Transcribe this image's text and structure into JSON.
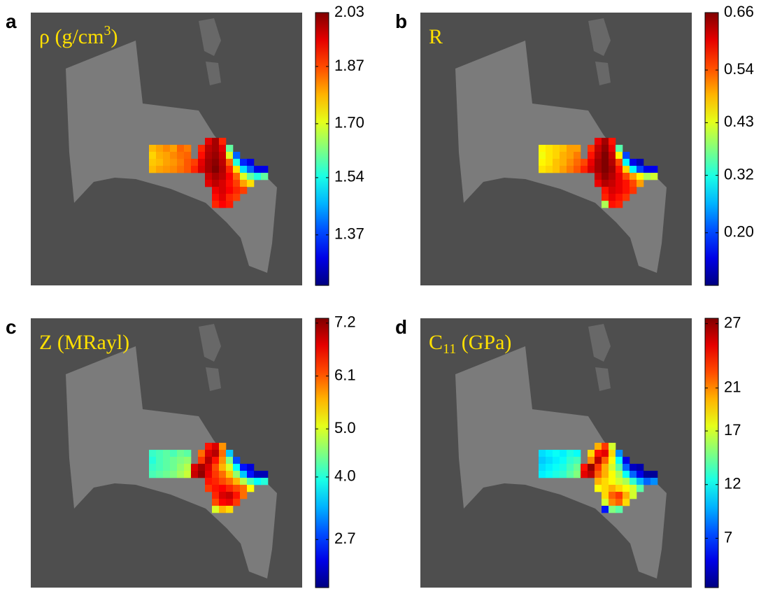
{
  "chart_data": [
    {
      "type": "heatmap",
      "label": "a",
      "title": {
        "text": "ρ (g/cm",
        "sup": "3",
        "after": ")"
      },
      "clim": [
        1.22,
        2.03
      ],
      "cticks": [
        2.03,
        1.87,
        {
          "value": 1.7,
          "label": "1.70"
        },
        1.54,
        1.37
      ],
      "cells": [
        [
          null,
          null,
          null,
          null,
          null,
          null,
          null,
          null,
          1.95,
          2.0,
          1.9,
          null,
          null,
          null,
          null,
          null,
          null
        ],
        [
          1.78,
          1.8,
          1.82,
          1.8,
          1.85,
          1.83,
          null,
          1.9,
          1.98,
          2.0,
          1.95,
          1.6,
          null,
          null,
          null,
          null,
          null
        ],
        [
          1.76,
          1.79,
          1.8,
          1.82,
          1.84,
          1.85,
          null,
          1.92,
          1.99,
          2.01,
          1.97,
          1.7,
          1.4,
          null,
          null,
          null,
          null
        ],
        [
          1.77,
          1.78,
          1.8,
          1.81,
          1.83,
          1.86,
          1.88,
          1.95,
          2.0,
          2.02,
          1.98,
          1.85,
          1.55,
          1.35,
          1.3,
          null,
          null
        ],
        [
          1.78,
          1.8,
          1.81,
          1.82,
          1.84,
          1.86,
          1.9,
          1.96,
          2.0,
          2.03,
          1.99,
          1.9,
          1.75,
          1.5,
          1.4,
          1.3,
          1.3
        ],
        [
          null,
          null,
          null,
          null,
          null,
          null,
          null,
          null,
          1.97,
          2.0,
          1.98,
          1.93,
          1.85,
          1.7,
          1.6,
          1.55,
          1.6
        ],
        [
          null,
          null,
          null,
          null,
          null,
          null,
          null,
          null,
          1.95,
          1.98,
          1.96,
          1.92,
          1.88,
          1.8,
          1.75,
          null,
          null
        ],
        [
          null,
          null,
          null,
          null,
          null,
          null,
          null,
          null,
          null,
          1.94,
          1.96,
          1.93,
          1.9,
          1.88,
          null,
          null,
          null
        ],
        [
          null,
          null,
          null,
          null,
          null,
          null,
          null,
          null,
          null,
          1.92,
          1.95,
          1.9,
          1.88,
          null,
          null,
          null,
          null
        ],
        [
          null,
          null,
          null,
          null,
          null,
          null,
          null,
          null,
          null,
          1.9,
          1.93,
          1.91,
          null,
          null,
          null,
          null,
          null
        ]
      ]
    },
    {
      "type": "heatmap",
      "label": "b",
      "title": {
        "text": "R"
      },
      "clim": [
        0.09,
        0.66
      ],
      "cticks": [
        0.66,
        0.54,
        0.43,
        0.32,
        {
          "value": 0.2,
          "label": "0.20"
        }
      ],
      "cells": [
        [
          null,
          null,
          null,
          null,
          null,
          null,
          null,
          null,
          0.6,
          0.64,
          0.58,
          null,
          null,
          null,
          null,
          null,
          null
        ],
        [
          0.45,
          0.46,
          0.47,
          0.48,
          0.5,
          0.5,
          null,
          0.56,
          0.62,
          0.65,
          0.6,
          0.35,
          null,
          null,
          null,
          null,
          null
        ],
        [
          0.44,
          0.46,
          0.47,
          0.49,
          0.5,
          0.52,
          null,
          0.58,
          0.63,
          0.66,
          0.62,
          0.45,
          0.2,
          null,
          null,
          null,
          null
        ],
        [
          0.45,
          0.46,
          0.48,
          0.49,
          0.51,
          0.53,
          0.55,
          0.6,
          0.64,
          0.66,
          0.63,
          0.55,
          0.3,
          0.15,
          0.12,
          null,
          null
        ],
        [
          0.46,
          0.47,
          0.48,
          0.5,
          0.52,
          0.54,
          0.57,
          0.61,
          0.64,
          0.66,
          0.64,
          0.58,
          0.47,
          0.3,
          0.2,
          0.15,
          0.15
        ],
        [
          null,
          null,
          null,
          null,
          null,
          null,
          null,
          null,
          0.62,
          0.65,
          0.63,
          0.6,
          0.55,
          0.5,
          0.45,
          0.4,
          0.42
        ],
        [
          null,
          null,
          null,
          null,
          null,
          null,
          null,
          null,
          0.6,
          0.63,
          0.62,
          0.6,
          0.58,
          0.55,
          0.5,
          null,
          null
        ],
        [
          null,
          null,
          null,
          null,
          null,
          null,
          null,
          null,
          null,
          0.58,
          0.61,
          0.6,
          0.58,
          0.56,
          null,
          null,
          null
        ],
        [
          null,
          null,
          null,
          null,
          null,
          null,
          null,
          null,
          null,
          0.57,
          0.6,
          0.58,
          0.56,
          null,
          null,
          null,
          null
        ],
        [
          null,
          null,
          null,
          null,
          null,
          null,
          null,
          null,
          null,
          0.4,
          0.58,
          0.57,
          null,
          null,
          null,
          null,
          null
        ]
      ]
    },
    {
      "type": "heatmap",
      "label": "c",
      "title": {
        "text": "Z (MRayl)"
      },
      "clim": [
        1.7,
        7.3
      ],
      "cticks": [
        7.2,
        6.1,
        {
          "value": 5,
          "label": "5.0"
        },
        {
          "value": 4,
          "label": "4.0"
        },
        2.7
      ],
      "cells": [
        [
          null,
          null,
          null,
          null,
          null,
          null,
          null,
          null,
          6.5,
          6.8,
          5.8,
          null,
          null,
          null,
          null,
          null,
          null
        ],
        [
          4.1,
          4.2,
          4.3,
          4.2,
          4.4,
          4.3,
          null,
          6.0,
          6.8,
          7.0,
          6.0,
          3.5,
          null,
          null,
          null,
          null,
          null
        ],
        [
          4.0,
          4.2,
          4.3,
          4.4,
          4.5,
          4.6,
          null,
          6.3,
          7.0,
          6.5,
          5.8,
          4.5,
          2.8,
          null,
          null,
          null,
          null
        ],
        [
          4.1,
          4.2,
          4.3,
          4.4,
          4.6,
          4.8,
          6.8,
          7.1,
          6.8,
          6.2,
          5.6,
          5.0,
          3.8,
          2.5,
          2.2,
          null,
          null
        ],
        [
          4.2,
          4.3,
          4.4,
          4.5,
          4.7,
          4.9,
          6.9,
          7.2,
          6.7,
          6.3,
          6.0,
          5.5,
          4.6,
          3.5,
          2.5,
          2.0,
          2.0
        ],
        [
          null,
          null,
          null,
          null,
          null,
          null,
          null,
          null,
          6.5,
          6.4,
          6.2,
          6.0,
          5.6,
          4.8,
          4.2,
          3.8,
          4.0
        ],
        [
          null,
          null,
          null,
          null,
          null,
          null,
          null,
          null,
          6.3,
          6.5,
          6.6,
          6.4,
          6.2,
          6.0,
          5.2,
          null,
          null
        ],
        [
          null,
          null,
          null,
          null,
          null,
          null,
          null,
          null,
          null,
          6.4,
          6.8,
          6.9,
          6.5,
          6.0,
          null,
          null,
          null
        ],
        [
          null,
          null,
          null,
          null,
          null,
          null,
          null,
          null,
          null,
          6.2,
          6.6,
          6.7,
          6.3,
          null,
          null,
          null,
          null
        ],
        [
          null,
          null,
          null,
          null,
          null,
          null,
          null,
          null,
          null,
          5.0,
          5.6,
          5.4,
          null,
          null,
          null,
          null,
          null
        ]
      ]
    },
    {
      "type": "heatmap",
      "label": "d",
      "title": {
        "text": "C",
        "sub": "11",
        "after": " (GPa)"
      },
      "clim": [
        2.4,
        27.5
      ],
      "cticks": [
        27,
        21,
        17,
        12,
        7
      ],
      "cells": [
        [
          null,
          null,
          null,
          null,
          null,
          null,
          null,
          null,
          20,
          23,
          17,
          null,
          null,
          null,
          null,
          null,
          null
        ],
        [
          11,
          11.5,
          12,
          11.5,
          12.5,
          12,
          null,
          19,
          24,
          25,
          19,
          9,
          null,
          null,
          null,
          null,
          null
        ],
        [
          10.5,
          11,
          11.5,
          12,
          13,
          13.5,
          null,
          21,
          26,
          22,
          18,
          12,
          5,
          null,
          null,
          null,
          null
        ],
        [
          11,
          11.5,
          12,
          12.5,
          13.5,
          14.5,
          24,
          27,
          23,
          20,
          17,
          14,
          8,
          4,
          3.5,
          null,
          null
        ],
        [
          11.5,
          12,
          12.5,
          13,
          14,
          15,
          25,
          26,
          22,
          20,
          18,
          16,
          12,
          8,
          5,
          3,
          3
        ],
        [
          null,
          null,
          null,
          null,
          null,
          null,
          null,
          null,
          20,
          19,
          18,
          17,
          16,
          13,
          10,
          8,
          9
        ],
        [
          null,
          null,
          null,
          null,
          null,
          null,
          null,
          null,
          18,
          19,
          20,
          19,
          18,
          17,
          14,
          null,
          null
        ],
        [
          null,
          null,
          null,
          null,
          null,
          null,
          null,
          null,
          null,
          19,
          22,
          23,
          20,
          17,
          null,
          null,
          null
        ],
        [
          null,
          null,
          null,
          null,
          null,
          null,
          null,
          null,
          null,
          17,
          21,
          22,
          19,
          null,
          null,
          null,
          null
        ],
        [
          null,
          null,
          null,
          null,
          null,
          null,
          null,
          null,
          null,
          6,
          15,
          14,
          null,
          null,
          null,
          null,
          null
        ]
      ]
    }
  ]
}
